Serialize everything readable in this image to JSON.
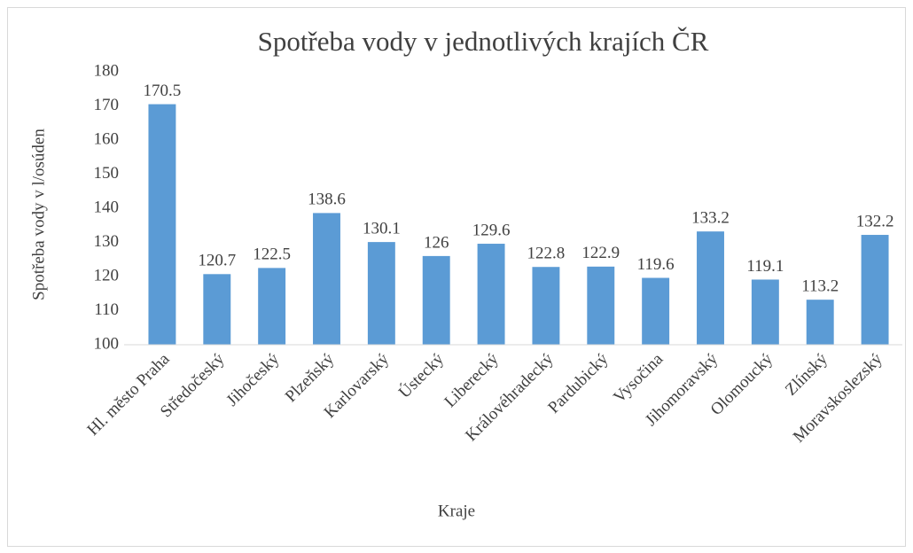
{
  "chart_data": {
    "type": "bar",
    "title": "Spotřeba vody v jednotlivých krajích ČR",
    "x_label": "Kraje",
    "y_label": "Spotřeba vody v l/osúden",
    "categories": [
      "Hl. město Praha",
      "Středočeský",
      "Jihočeský",
      "Plzeňský",
      "Karlovarský",
      "Ústecký",
      "Liberecký",
      "Královéhradecký",
      "Pardubický",
      "Vysočina",
      "Jihomoravský",
      "Olomoucký",
      "Zlínský",
      "Moravskoslezský"
    ],
    "values": [
      170.5,
      120.7,
      122.5,
      138.6,
      130.1,
      126,
      129.6,
      122.8,
      122.9,
      119.6,
      133.2,
      119.1,
      113.2,
      132.2
    ],
    "color": "#5b9bd5",
    "ylim": [
      100,
      180
    ],
    "yticks": [
      100,
      110,
      120,
      130,
      140,
      150,
      160,
      170,
      180
    ],
    "grid": false
  }
}
